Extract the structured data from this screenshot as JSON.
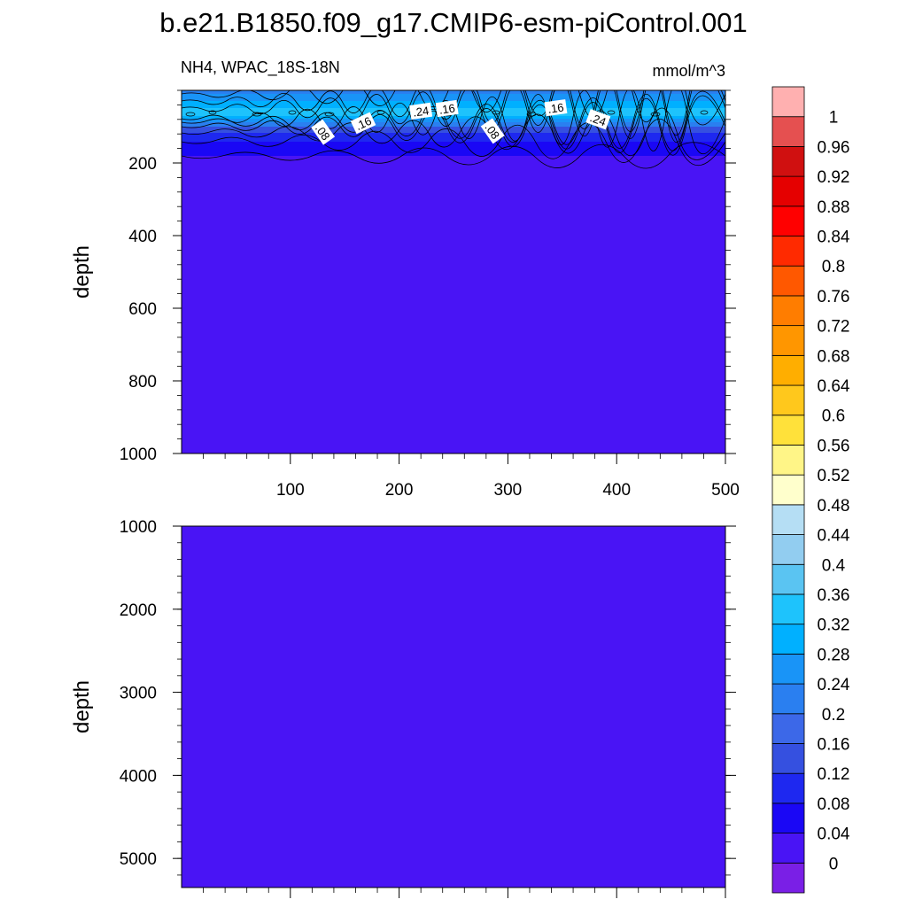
{
  "title": "b.e21.B1850.f09_g17.CMIP6-esm-piControl.001",
  "chart_data": {
    "type": "heatmap",
    "variable": "NH4, WPAC_18S-18N",
    "units": "mmol/m^3",
    "x": {
      "range": [
        0,
        500
      ],
      "ticks": [
        "100",
        "200",
        "300",
        "400",
        "500"
      ]
    },
    "panels": [
      {
        "ylabel": "depth",
        "y_range": [
          0,
          1000
        ],
        "y_ticks": [
          "200",
          "400",
          "600",
          "800",
          "1000"
        ],
        "contour_labels": [
          {
            "text": ".08",
            "x": 130,
            "y": 115
          },
          {
            "text": ".16",
            "x": 167,
            "y": 90
          },
          {
            "text": ".24",
            "x": 220,
            "y": 57
          },
          {
            "text": ".16",
            "x": 244,
            "y": 50
          },
          {
            "text": ".08",
            "x": 286,
            "y": 112
          },
          {
            "text": ".16",
            "x": 344,
            "y": 48
          },
          {
            "text": ".24",
            "x": 383,
            "y": 80
          }
        ]
      },
      {
        "ylabel": "depth",
        "y_range": [
          1000,
          5350
        ],
        "y_ticks": [
          "1000",
          "2000",
          "3000",
          "4000",
          "5000"
        ]
      }
    ],
    "colorbar": {
      "colors": [
        "#7a1fe6",
        "#4914f5",
        "#1a07f5",
        "#1e28f0",
        "#3550e0",
        "#3c68e8",
        "#2a7ff0",
        "#1994f7",
        "#00b0ff",
        "#1ec3fc",
        "#5ac4f2",
        "#92cdf0",
        "#b5def4",
        "#ffffcc",
        "#fff587",
        "#ffe13a",
        "#ffc81c",
        "#ffae00",
        "#ff9600",
        "#ff7d00",
        "#ff5800",
        "#ff2a00",
        "#ff0000",
        "#e50000",
        "#d01010",
        "#e55050",
        "#ffb0b0"
      ],
      "labels": [
        "0",
        "0.04",
        "0.08",
        "0.12",
        "0.16",
        "0.2",
        "0.24",
        "0.28",
        "0.32",
        "0.36",
        "0.4",
        "0.44",
        "0.48",
        "0.52",
        "0.56",
        "0.6",
        "0.64",
        "0.68",
        "0.72",
        "0.76",
        "0.8",
        "0.84",
        "0.88",
        "0.92",
        "0.96",
        "1"
      ]
    }
  }
}
